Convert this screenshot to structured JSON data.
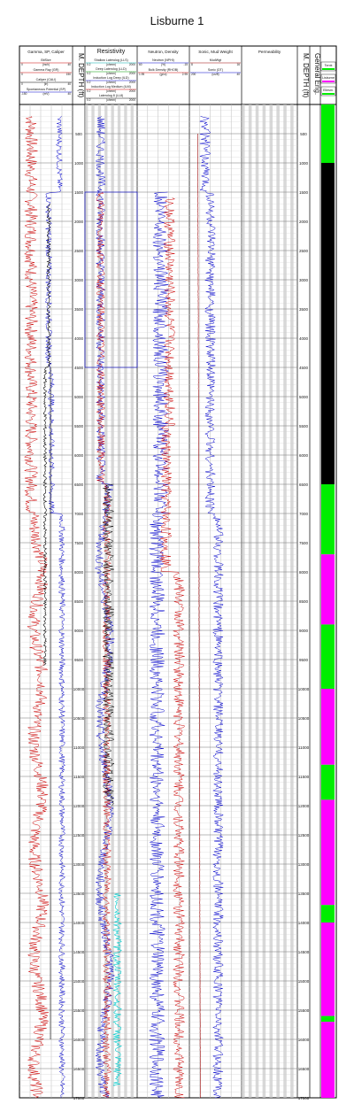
{
  "title": "Lisburne 1",
  "chart_data": {
    "type": "line",
    "title": "Lisburne 1",
    "depth_label": "M. DEPTH (ft)",
    "depth_range": [
      0,
      17000
    ],
    "depth_ticks": [
      500,
      1000,
      1500,
      2000,
      2500,
      3000,
      3500,
      4000,
      4500,
      5000,
      5500,
      6000,
      6500,
      7000,
      7500,
      8000,
      8500,
      9000,
      9500,
      10000,
      10500,
      11000,
      11500,
      12000,
      12500,
      13000,
      13500,
      14000,
      14500,
      15000,
      15500,
      16000,
      16500,
      17000
    ],
    "tracks": [
      {
        "title": "Gamma, SP, Caliper",
        "curves": [
          {
            "name": "BitSize",
            "unit": "(inch)",
            "min": "0",
            "max": "40",
            "color": "#cc0000"
          },
          {
            "name": "Gamma Ray (GR)",
            "unit": "",
            "min": "0",
            "max": "150",
            "color": "#cc0000"
          },
          {
            "name": "Caliper (CALI)",
            "unit": "(in)",
            "min": "0",
            "max": "40",
            "color": "#000000"
          },
          {
            "name": "Spontaneous Potential (SP)",
            "unit": "(mV)",
            "min": "-150",
            "max": "40",
            "color": "#0000cc"
          }
        ]
      },
      {
        "title": "Resistivity",
        "curves": [
          {
            "name": "Shallow Laterolog (LLS)",
            "unit": "(ohmm)",
            "min": "0.2",
            "max": "2000",
            "color": "#00aaaa"
          },
          {
            "name": "Deep Laterolog (LLD)",
            "unit": "(ohmm)",
            "min": "0.2",
            "max": "2000",
            "color": "#009900"
          },
          {
            "name": "Induction Log Deep (ILD)",
            "unit": "(ohmm)",
            "min": "0.2",
            "max": "2000",
            "color": "#0000cc"
          },
          {
            "name": "Induction Log Medium (ILM)",
            "unit": "(ohmm)",
            "min": "0.2",
            "max": "2000",
            "color": "#cc0000"
          },
          {
            "name": "Laterolog 8 (LL8)",
            "unit": "(ohmm)",
            "min": "0.2",
            "max": "2000",
            "color": "#000000"
          }
        ]
      },
      {
        "title": "Neutron, Density",
        "curves": [
          {
            "name": "Neutron (NPHI)",
            "unit": "(%)",
            "min": "60",
            "max": "-15",
            "color": "#0000cc"
          },
          {
            "name": "Bulk Density (RHOB)",
            "unit": "(g/cc)",
            "min": "1.95",
            "max": "2.95",
            "color": "#cc0000"
          }
        ]
      },
      {
        "title": "Sonic, Mud Weight",
        "curves": [
          {
            "name": "MudWgt",
            "unit": "",
            "min": "8",
            "max": "16",
            "color": "#990000"
          },
          {
            "name": "Sonic (DT)",
            "unit": "(us/ft)",
            "min": "200",
            "max": "40",
            "color": "#0000cc"
          }
        ]
      },
      {
        "title": "Permeability",
        "curves": []
      }
    ],
    "right_depth_label": "M. DEPTH (ft)",
    "geology_track": {
      "title": "General Eng.",
      "legend": [
        {
          "label": "Torok",
          "color": "#00ee00"
        },
        {
          "label": "Lisburne",
          "color": "#ff00ff"
        },
        {
          "label": "Ellesm.",
          "color": "#00ee00"
        }
      ],
      "intervals": [
        {
          "top": 0,
          "base": 1000,
          "color": "#00ee00"
        },
        {
          "top": 1000,
          "base": 6500,
          "color": "#000000"
        },
        {
          "top": 6500,
          "base": 7700,
          "color": "#00ee00"
        },
        {
          "top": 7700,
          "base": 8900,
          "color": "#ff00ff"
        },
        {
          "top": 8900,
          "base": 10000,
          "color": "#00ee00"
        },
        {
          "top": 10000,
          "base": 11300,
          "color": "#ff00ff"
        },
        {
          "top": 11300,
          "base": 11900,
          "color": "#00ee00"
        },
        {
          "top": 11900,
          "base": 13700,
          "color": "#ff00ff"
        },
        {
          "top": 13700,
          "base": 14000,
          "color": "#00ee00"
        },
        {
          "top": 14000,
          "base": 15600,
          "color": "#ff00ff"
        },
        {
          "top": 15600,
          "base": 15700,
          "color": "#00ee00"
        },
        {
          "top": 15700,
          "base": 17000,
          "color": "#ff00ff"
        }
      ]
    }
  }
}
